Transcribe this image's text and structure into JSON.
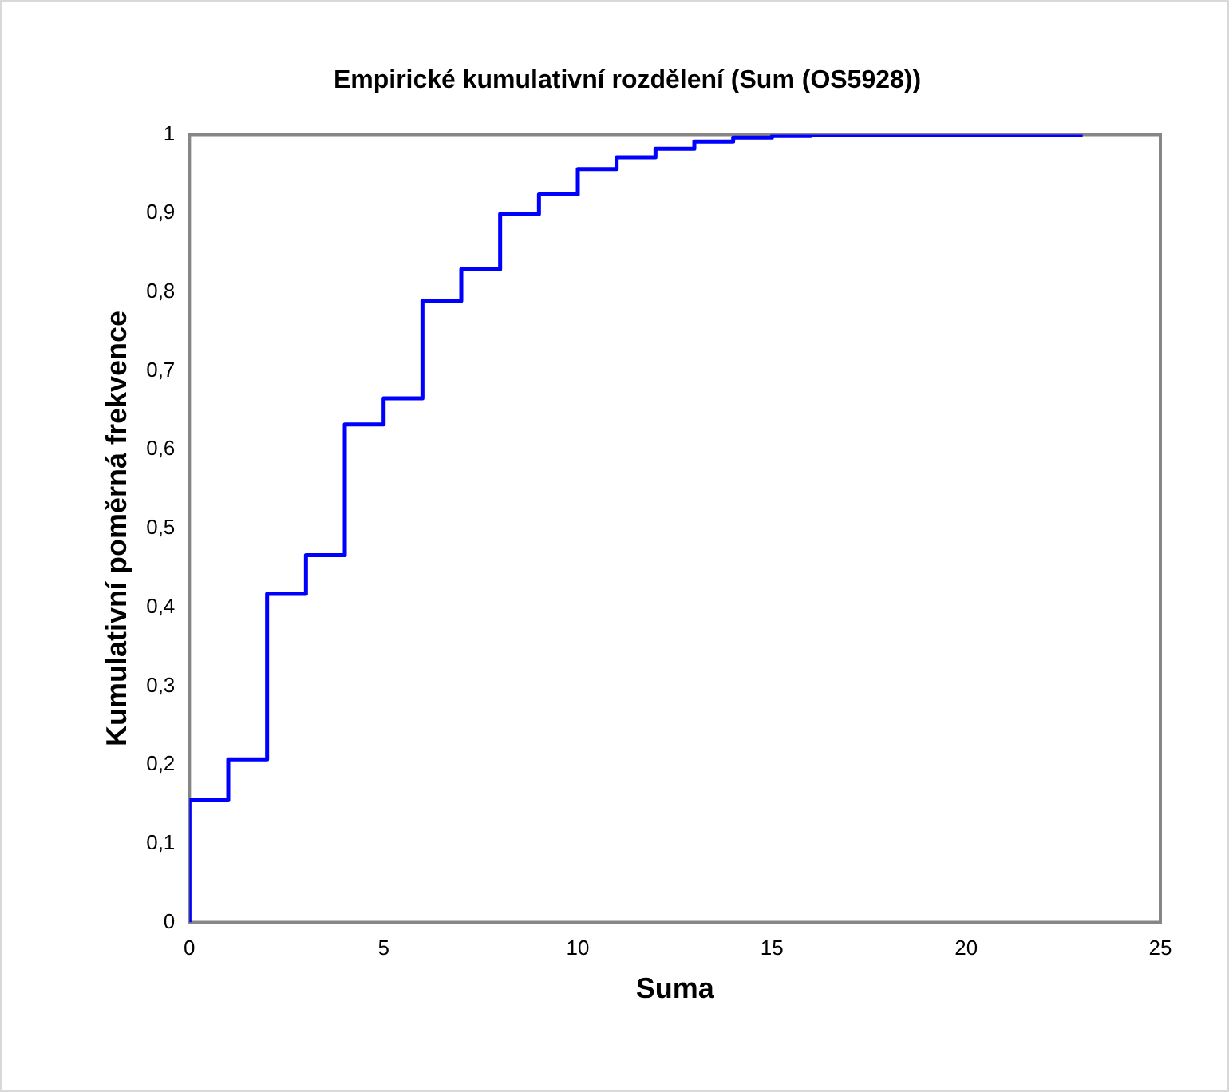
{
  "chart_data": {
    "type": "step",
    "title": "Empirické kumulativní rozdělení (Sum (OS5928))",
    "xlabel": "Suma",
    "ylabel": "Kumulativní poměrná frekvence",
    "series": [
      {
        "color": "#0000ff",
        "x": [
          0,
          0,
          1,
          2,
          3,
          4,
          5,
          6,
          7,
          8,
          9,
          10,
          11,
          12,
          13,
          14,
          15,
          16,
          17,
          18,
          19,
          20,
          21,
          22,
          23
        ],
        "values": [
          0,
          0.155,
          0.207,
          0.417,
          0.466,
          0.632,
          0.665,
          0.789,
          0.829,
          0.899,
          0.924,
          0.956,
          0.971,
          0.982,
          0.991,
          0.996,
          0.998,
          0.999,
          1,
          1,
          1,
          1,
          1,
          1,
          1
        ]
      }
    ],
    "xlim": [
      0,
      25
    ],
    "xticks": [
      0,
      5,
      10,
      15,
      20,
      25
    ],
    "ylim": [
      0,
      1
    ],
    "yticks": [
      0,
      {
        "value": 0.1,
        "label": "0,1"
      },
      {
        "value": 0.2,
        "label": "0,2"
      },
      {
        "value": 0.3,
        "label": "0,3"
      },
      {
        "value": 0.4,
        "label": "0,4"
      },
      {
        "value": 0.5,
        "label": "0,5"
      },
      {
        "value": 0.6,
        "label": "0,6"
      },
      {
        "value": 0.7,
        "label": "0,7"
      },
      {
        "value": 0.8,
        "label": "0,8"
      },
      {
        "value": 0.9,
        "label": "0,9"
      },
      1
    ],
    "grid": false,
    "legend": false,
    "marker": "none",
    "line_style": "solid"
  }
}
